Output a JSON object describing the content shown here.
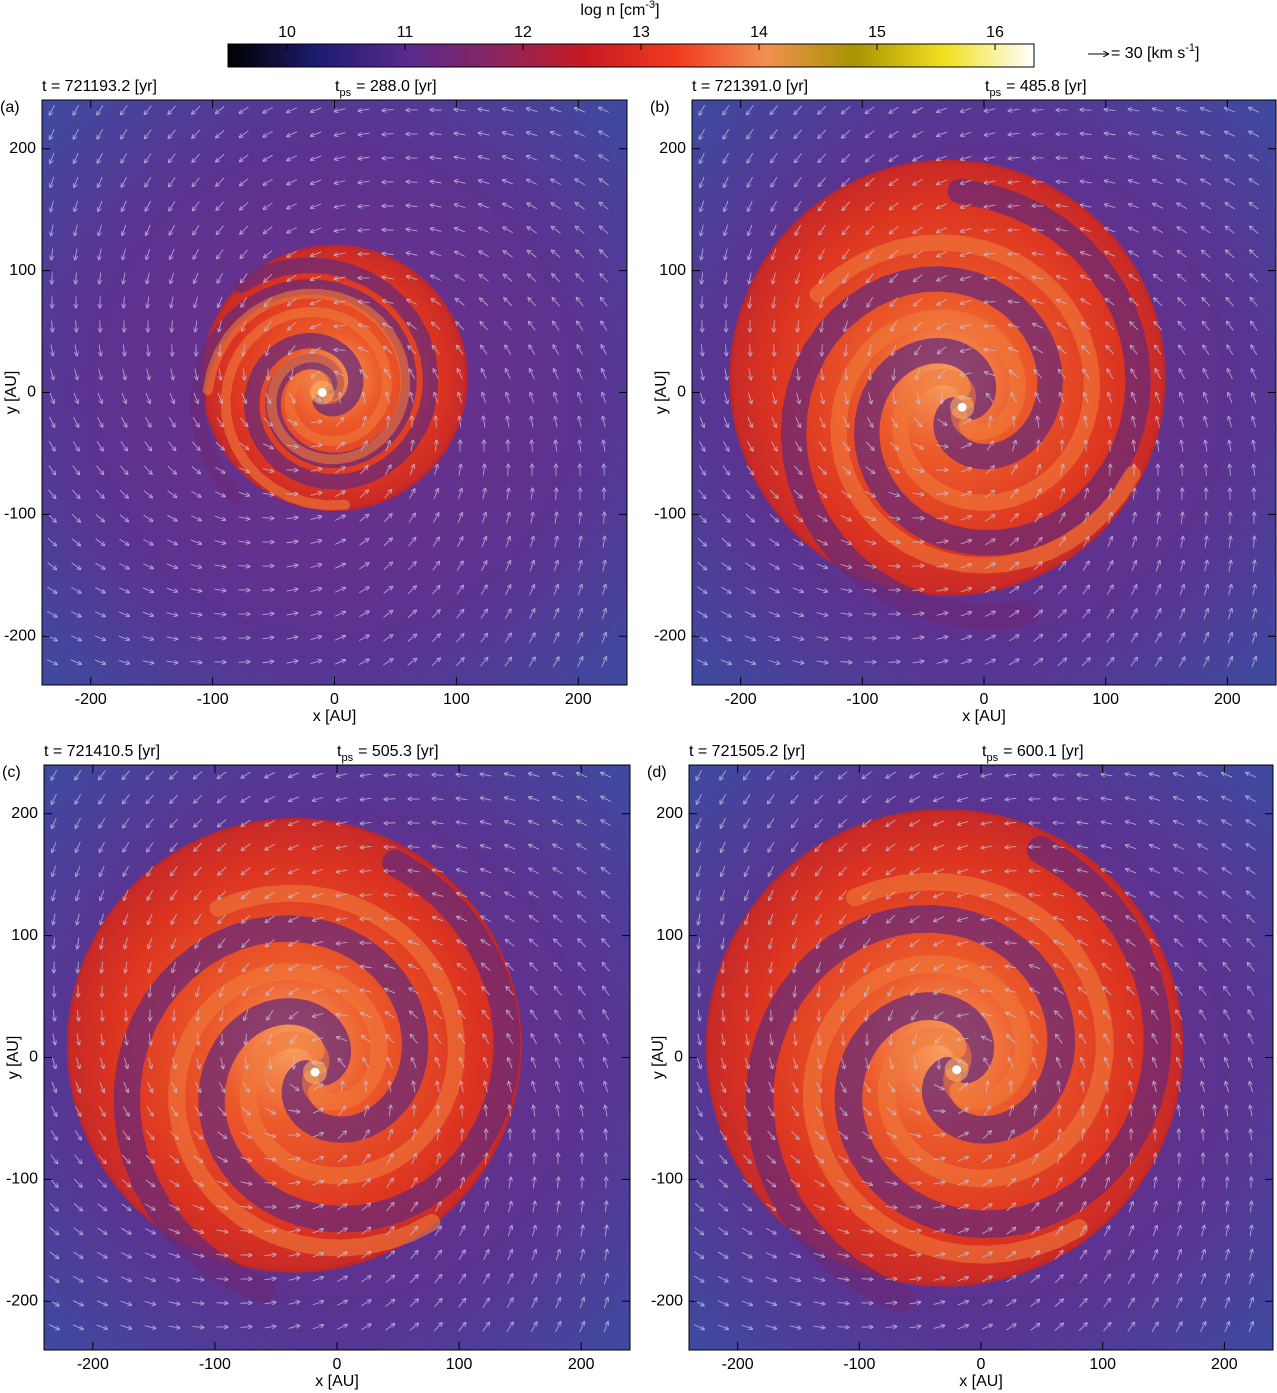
{
  "chart_data": [
    {
      "type": "colorbar",
      "label": "log n [cm",
      "label_sup": "-3",
      "label_end": "]",
      "clim": [
        9.5,
        16.33
      ],
      "ticks": [
        10,
        11,
        12,
        13,
        14,
        15,
        16
      ],
      "colormap": [
        "#000000",
        "#1c1c70",
        "#5a2a8c",
        "#8a2460",
        "#c81a22",
        "#f03a20",
        "#f29050",
        "#a89400",
        "#f2e020",
        "#ffffff"
      ],
      "vector_key_label": "= 30 [km s",
      "vector_key_sup": "-1",
      "vector_key_end": "]"
    },
    {
      "type": "heatmap",
      "panel_label": "(a)",
      "time_label": "t = 721193.2 [yr]",
      "tps_t": "t",
      "tps_sub": "ps",
      "tps_text": "= 288.0 [yr]",
      "x_label": "x [AU]",
      "y_label": "y [AU]",
      "xlim": [
        -240,
        240
      ],
      "ylim": [
        -240,
        240
      ],
      "xticks": [
        -200,
        -100,
        0,
        100,
        200
      ],
      "yticks": [
        -200,
        -100,
        0,
        100,
        200
      ]
    },
    {
      "type": "heatmap",
      "panel_label": "(b)",
      "time_label": "t = 721391.0 [yr]",
      "tps_t": "t",
      "tps_sub": "ps",
      "tps_text": "= 485.8 [yr]",
      "x_label": "x [AU]",
      "y_label": "y [AU]",
      "xlim": [
        -240,
        240
      ],
      "ylim": [
        -240,
        240
      ],
      "xticks": [
        -200,
        -100,
        0,
        100,
        200
      ],
      "yticks": [
        -200,
        -100,
        0,
        100,
        200
      ]
    },
    {
      "type": "heatmap",
      "panel_label": "(c)",
      "time_label": "t = 721410.5 [yr]",
      "tps_t": "t",
      "tps_sub": "ps",
      "tps_text": "= 505.3 [yr]",
      "x_label": "x [AU]",
      "y_label": "y [AU]",
      "xlim": [
        -240,
        240
      ],
      "ylim": [
        -240,
        240
      ],
      "xticks": [
        -200,
        -100,
        0,
        100,
        200
      ],
      "yticks": [
        -200,
        -100,
        0,
        100,
        200
      ]
    },
    {
      "type": "heatmap",
      "panel_label": "(d)",
      "time_label": "t = 721505.2 [yr]",
      "tps_t": "t",
      "tps_sub": "ps",
      "tps_text": "= 600.1 [yr]",
      "x_label": "x [AU]",
      "y_label": "y [AU]",
      "xlim": [
        -240,
        240
      ],
      "ylim": [
        -240,
        240
      ],
      "xticks": [
        -200,
        -100,
        0,
        100,
        200
      ],
      "yticks": [
        -200,
        -100,
        0,
        100,
        200
      ]
    }
  ]
}
